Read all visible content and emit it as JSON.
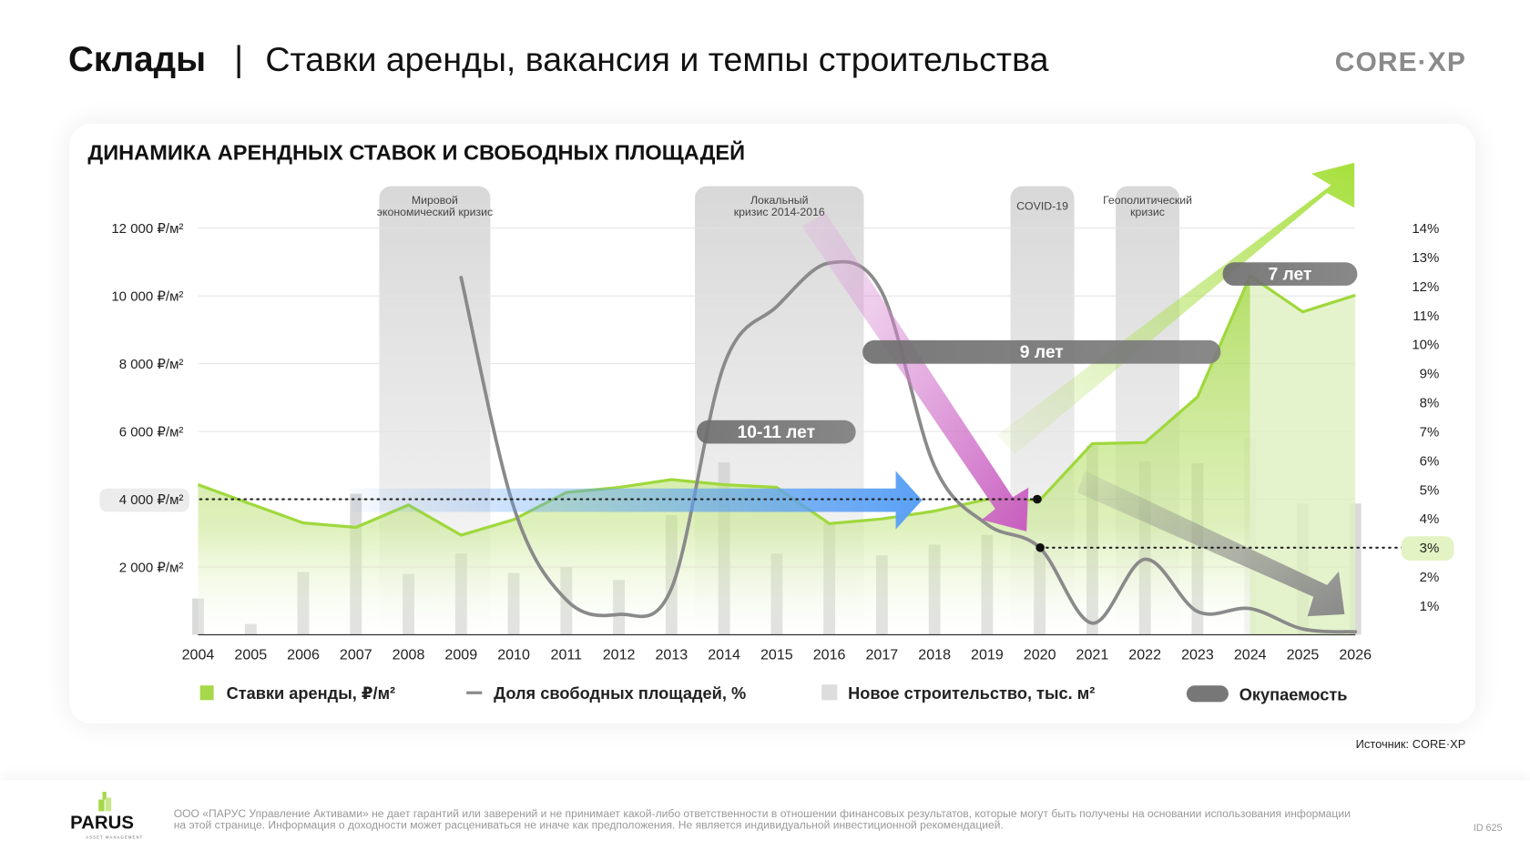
{
  "header": {
    "title": "Склады",
    "separator": "|",
    "subtitle": "Ставки аренды, вакансия  и темпы строительства",
    "brand": "CORE·XP"
  },
  "chart_data": {
    "type": "combo",
    "title": "ДИНАМИКА АРЕНДНЫХ СТАВОК И СВОБОДНЫХ ПЛОЩАДЕЙ",
    "categories": [
      "2004",
      "2005",
      "2006",
      "2007",
      "2008",
      "2009",
      "2010",
      "2011",
      "2012",
      "2013",
      "2014",
      "2015",
      "2016",
      "2017",
      "2018",
      "2019",
      "2020",
      "2021",
      "2022",
      "2023",
      "2024",
      "2025",
      "2026"
    ],
    "left_axis": {
      "ticks": [
        "2 000 ₽/м²",
        "4 000 ₽/м²",
        "6 000 ₽/м²",
        "8 000 ₽/м²",
        "10 000 ₽/м²",
        "12 000 ₽/м²"
      ],
      "ylim": [
        0,
        12000
      ]
    },
    "right_axis": {
      "ticks": [
        "1%",
        "2%",
        "3%",
        "4%",
        "5%",
        "6%",
        "7%",
        "8%",
        "9%",
        "10%",
        "11%",
        "12%",
        "13%",
        "14%"
      ],
      "ylim": [
        0,
        14
      ]
    },
    "grid": true,
    "legend_placement": "bottom",
    "series": [
      {
        "name": "Ставки аренды, ₽/м²",
        "type": "area",
        "axis": "left",
        "color": "#a6d84a",
        "values": [
          4430,
          3860,
          3300,
          3170,
          3830,
          2940,
          3400,
          4200,
          4350,
          4580,
          4430,
          4350,
          3280,
          3420,
          3650,
          4000,
          3970,
          5640,
          5670,
          7020,
          10590,
          9530,
          10020
        ],
        "forecast_from": "2024"
      },
      {
        "name": "Доля свободных площадей, %",
        "type": "line",
        "axis": "right",
        "color": "#8c8c8c",
        "values": [
          null,
          null,
          null,
          null,
          null,
          12.3,
          4.4,
          1.2,
          0.7,
          1.6,
          9.3,
          11.3,
          12.8,
          11.8,
          5.8,
          3.8,
          3.0,
          0.4,
          2.6,
          0.8,
          0.9,
          0.2,
          0.1
        ]
      },
      {
        "name": "Новое строительство, тыс. м²",
        "type": "bar",
        "axis": "none",
        "color": "#d9d9d9",
        "values": [
          37,
          11,
          64,
          144,
          62,
          83,
          63,
          69,
          56,
          122,
          176,
          83,
          114,
          81,
          92,
          102,
          86,
          193,
          177,
          175,
          201,
          134,
          134
        ]
      },
      {
        "name": "Окупаемость",
        "type": "annotation",
        "color": "#7a7a7a"
      }
    ],
    "crisis_bands": [
      {
        "label": "Мировой экономический кризис",
        "line1": "Мировой",
        "line2": "экономический кризис",
        "from": "2007.5",
        "to": "2009.5"
      },
      {
        "label": "Локальный кризис 2014-2016",
        "line1": "Локальный",
        "line2": "кризис 2014-2016",
        "from": "2013.5",
        "to": "2016.6"
      },
      {
        "label": "COVID-19",
        "line1": "COVID-19",
        "line2": "",
        "from": "2019.5",
        "to": "2020.6"
      },
      {
        "label": "Геополитический кризис",
        "line1": "Геополитический",
        "line2": "кризис",
        "from": "2021.5",
        "to": "2022.6"
      }
    ],
    "annotations": {
      "payback_1": "10-11 лет",
      "payback_2": "9 лет",
      "payback_3": "7 лет",
      "rent_reference": "4 000 ₽/м²",
      "vacancy_reference": "3%"
    }
  },
  "legend": {
    "rent": "Ставки аренды, ₽/м²",
    "vacancy": "Доля свободных площадей, %",
    "construction": "Новое строительство, тыс. м²",
    "payback": "Окупаемость"
  },
  "source": "Источник: CORE·XP",
  "footer": {
    "logo": "PARUS",
    "logo_sub": "ASSET MANAGEMENT",
    "disclaimer": "ООО «ПАРУС Управление Активами» не дает гарантий или заверений и не принимает какой-либо ответственности в отношении финансовых результатов, которые могут быть получены на основании использования информации на этой странице. Информация о доходности может расцениваться не иначе как предположения. Не является индивидуальной инвестиционной рекомендацией.",
    "page_id": "ID 625"
  }
}
